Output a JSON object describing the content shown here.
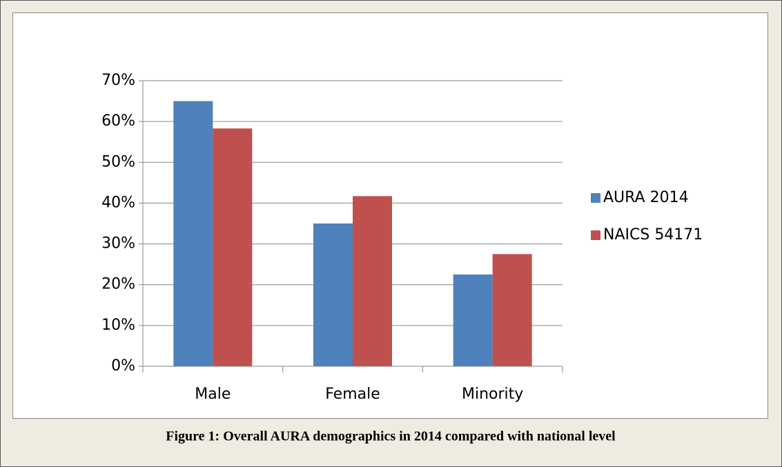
{
  "chart_data": {
    "type": "bar",
    "caption": "Figure 1: Overall AURA demographics in 2014 compared with national level",
    "categories": [
      "Male",
      "Female",
      "Minority"
    ],
    "series": [
      {
        "name": "AURA 2014",
        "color": "#4f81bd",
        "values": [
          65,
          35,
          22.5
        ]
      },
      {
        "name": "NAICS 54171",
        "color": "#c0504d",
        "values": [
          58.3,
          41.7,
          27.5
        ]
      }
    ],
    "ylim": [
      0,
      70
    ],
    "yticks": [
      {
        "value": 0,
        "label": "0%"
      },
      {
        "value": 10,
        "label": "10%"
      },
      {
        "value": 20,
        "label": "20%"
      },
      {
        "value": 30,
        "label": "30%"
      },
      {
        "value": 40,
        "label": "40%"
      },
      {
        "value": 50,
        "label": "50%"
      },
      {
        "value": 60,
        "label": "60%"
      },
      {
        "value": 70,
        "label": "70%"
      }
    ],
    "grid": true,
    "legend": "right"
  }
}
